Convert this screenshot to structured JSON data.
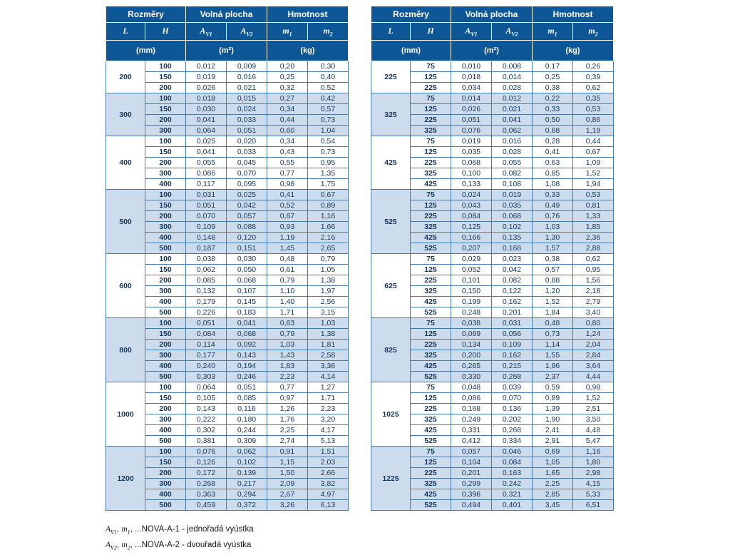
{
  "header": {
    "group_dimensions": "Rozměry",
    "group_free_area": "Volná plocha",
    "group_weight": "Hmotnost",
    "cols": [
      {
        "base": "L",
        "sub": ""
      },
      {
        "base": "H",
        "sub": ""
      },
      {
        "base": "A",
        "sub": "V1"
      },
      {
        "base": "A",
        "sub": "V2"
      },
      {
        "base": "m",
        "sub": "1"
      },
      {
        "base": "m",
        "sub": "2"
      }
    ],
    "units": [
      "(mm)",
      "(m²)",
      "(kg)"
    ]
  },
  "colors": {
    "header_bg": "#0e5796",
    "alt_row_bg": "#cddcec",
    "grid_border": "#4a7aa8",
    "data_text": "#16365c"
  },
  "tables": [
    {
      "groups": [
        {
          "L": "200",
          "rows": [
            [
              "100",
              "0,012",
              "0,009",
              "0,20",
              "0,30"
            ],
            [
              "150",
              "0,019",
              "0,016",
              "0,25",
              "0,40"
            ],
            [
              "200",
              "0,026",
              "0,021",
              "0,32",
              "0,52"
            ]
          ]
        },
        {
          "L": "300",
          "rows": [
            [
              "100",
              "0,018",
              "0,015",
              "0,27",
              "0,42"
            ],
            [
              "150",
              "0,030",
              "0,024",
              "0,34",
              "0,57"
            ],
            [
              "200",
              "0,041",
              "0,033",
              "0,44",
              "0,73"
            ],
            [
              "300",
              "0,064",
              "0,051",
              "0,60",
              "1,04"
            ]
          ]
        },
        {
          "L": "400",
          "rows": [
            [
              "100",
              "0,025",
              "0,020",
              "0,34",
              "0,54"
            ],
            [
              "150",
              "0,041",
              "0,033",
              "0,43",
              "0,73"
            ],
            [
              "200",
              "0,055",
              "0,045",
              "0,55",
              "0,95"
            ],
            [
              "300",
              "0,086",
              "0,070",
              "0,77",
              "1,35"
            ],
            [
              "400",
              "0,117",
              "0,095",
              "0,98",
              "1,75"
            ]
          ]
        },
        {
          "L": "500",
          "rows": [
            [
              "100",
              "0,031",
              "0,025",
              "0,41",
              "0,67"
            ],
            [
              "150",
              "0,051",
              "0,042",
              "0,52",
              "0,89"
            ],
            [
              "200",
              "0,070",
              "0,057",
              "0,67",
              "1,16"
            ],
            [
              "300",
              "0,109",
              "0,088",
              "0,93",
              "1,66"
            ],
            [
              "400",
              "0,148",
              "0,120",
              "1,19",
              "2,16"
            ],
            [
              "500",
              "0,187",
              "0,151",
              "1,45",
              "2,65"
            ]
          ]
        },
        {
          "L": "600",
          "rows": [
            [
              "100",
              "0,038",
              "0,030",
              "0,48",
              "0,79"
            ],
            [
              "150",
              "0,062",
              "0,050",
              "0,61",
              "1,05"
            ],
            [
              "200",
              "0,085",
              "0,068",
              "0,79",
              "1,38"
            ],
            [
              "300",
              "0,132",
              "0,107",
              "1,10",
              "1,97"
            ],
            [
              "400",
              "0,179",
              "0,145",
              "1,40",
              "2,56"
            ],
            [
              "500",
              "0,226",
              "0,183",
              "1,71",
              "3,15"
            ]
          ]
        },
        {
          "L": "800",
          "rows": [
            [
              "100",
              "0,051",
              "0,041",
              "0,63",
              "1,03"
            ],
            [
              "150",
              "0,084",
              "0,068",
              "0,79",
              "1,38"
            ],
            [
              "200",
              "0,114",
              "0,092",
              "1,03",
              "1,81"
            ],
            [
              "300",
              "0,177",
              "0,143",
              "1,43",
              "2,58"
            ],
            [
              "400",
              "0,240",
              "0,194",
              "1,83",
              "3,36"
            ],
            [
              "500",
              "0,303",
              "0,246",
              "2,23",
              "4,14"
            ]
          ]
        },
        {
          "L": "1000",
          "rows": [
            [
              "100",
              "0,064",
              "0,051",
              "0,77",
              "1,27"
            ],
            [
              "150",
              "0,105",
              "0,085",
              "0,97",
              "1,71"
            ],
            [
              "200",
              "0,143",
              "0,116",
              "1,26",
              "2,23"
            ],
            [
              "300",
              "0,222",
              "0,180",
              "1,76",
              "3,20"
            ],
            [
              "400",
              "0,302",
              "0,244",
              "2,25",
              "4,17"
            ],
            [
              "500",
              "0,381",
              "0,309",
              "2,74",
              "5,13"
            ]
          ]
        },
        {
          "L": "1200",
          "rows": [
            [
              "100",
              "0,076",
              "0,062",
              "0,91",
              "1,51"
            ],
            [
              "150",
              "0,126",
              "0,102",
              "1,15",
              "2,03"
            ],
            [
              "200",
              "0,172",
              "0,139",
              "1,50",
              "2,66"
            ],
            [
              "300",
              "0,268",
              "0,217",
              "2,09",
              "3,82"
            ],
            [
              "400",
              "0,363",
              "0,294",
              "2,67",
              "4,97"
            ],
            [
              "500",
              "0,459",
              "0,372",
              "3,26",
              "6,13"
            ]
          ]
        }
      ]
    },
    {
      "groups": [
        {
          "L": "225",
          "rows": [
            [
              "75",
              "0,010",
              "0,008",
              "0,17",
              "0,26"
            ],
            [
              "125",
              "0,018",
              "0,014",
              "0,25",
              "0,39"
            ],
            [
              "225",
              "0,034",
              "0,028",
              "0,38",
              "0,62"
            ]
          ]
        },
        {
          "L": "325",
          "rows": [
            [
              "75",
              "0,014",
              "0,012",
              "0,22",
              "0,35"
            ],
            [
              "125",
              "0,026",
              "0,021",
              "0,33",
              "0,53"
            ],
            [
              "225",
              "0,051",
              "0,041",
              "0,50",
              "0,86"
            ],
            [
              "325",
              "0,076",
              "0,062",
              "0,68",
              "1,19"
            ]
          ]
        },
        {
          "L": "425",
          "rows": [
            [
              "75",
              "0,019",
              "0,016",
              "0,28",
              "0,44"
            ],
            [
              "125",
              "0,035",
              "0,028",
              "0,41",
              "0,67"
            ],
            [
              "225",
              "0,068",
              "0,055",
              "0,63",
              "1,09"
            ],
            [
              "325",
              "0,100",
              "0,082",
              "0,85",
              "1,52"
            ],
            [
              "425",
              "0,133",
              "0,108",
              "1,08",
              "1,94"
            ]
          ]
        },
        {
          "L": "525",
          "rows": [
            [
              "75",
              "0,024",
              "0,019",
              "0,33",
              "0,53"
            ],
            [
              "125",
              "0,043",
              "0,035",
              "0,49",
              "0,81"
            ],
            [
              "225",
              "0,084",
              "0,068",
              "0,76",
              "1,33"
            ],
            [
              "325",
              "0,125",
              "0,102",
              "1,03",
              "1,85"
            ],
            [
              "425",
              "0,166",
              "0,135",
              "1,30",
              "2,36"
            ],
            [
              "525",
              "0,207",
              "0,168",
              "1,57",
              "2,88"
            ]
          ]
        },
        {
          "L": "625",
          "rows": [
            [
              "75",
              "0,029",
              "0,023",
              "0,38",
              "0,62"
            ],
            [
              "125",
              "0,052",
              "0,042",
              "0,57",
              "0,95"
            ],
            [
              "225",
              "0,101",
              "0,082",
              "0,88",
              "1,56"
            ],
            [
              "325",
              "0,150",
              "0,122",
              "1,20",
              "2,18"
            ],
            [
              "425",
              "0,199",
              "0,162",
              "1,52",
              "2,79"
            ],
            [
              "525",
              "0,248",
              "0,201",
              "1,84",
              "3,40"
            ]
          ]
        },
        {
          "L": "825",
          "rows": [
            [
              "75",
              "0,038",
              "0,031",
              "0,48",
              "0,80"
            ],
            [
              "125",
              "0,069",
              "0,056",
              "0,73",
              "1,24"
            ],
            [
              "225",
              "0,134",
              "0,109",
              "1,14",
              "2,04"
            ],
            [
              "325",
              "0,200",
              "0,162",
              "1,55",
              "2,84"
            ],
            [
              "425",
              "0,265",
              "0,215",
              "1,96",
              "3,64"
            ],
            [
              "525",
              "0,330",
              "0,268",
              "2,37",
              "4,44"
            ]
          ]
        },
        {
          "L": "1025",
          "rows": [
            [
              "75",
              "0,048",
              "0,039",
              "0,59",
              "0,98"
            ],
            [
              "125",
              "0,086",
              "0,070",
              "0,89",
              "1,52"
            ],
            [
              "225",
              "0,168",
              "0,136",
              "1,39",
              "2,51"
            ],
            [
              "325",
              "0,249",
              "0,202",
              "1,90",
              "3,50"
            ],
            [
              "425",
              "0,331",
              "0,268",
              "2,41",
              "4,48"
            ],
            [
              "525",
              "0,412",
              "0,334",
              "2,91",
              "5,47"
            ]
          ]
        },
        {
          "L": "1225",
          "rows": [
            [
              "75",
              "0,057",
              "0,046",
              "0,69",
              "1,16"
            ],
            [
              "125",
              "0,104",
              "0,084",
              "1,05",
              "1,80"
            ],
            [
              "225",
              "0,201",
              "0,163",
              "1,65",
              "2,98"
            ],
            [
              "325",
              "0,299",
              "0,242",
              "2,25",
              "4,15"
            ],
            [
              "425",
              "0,396",
              "0,321",
              "2,85",
              "5,33"
            ],
            [
              "525",
              "0,494",
              "0,401",
              "3,45",
              "6,51"
            ]
          ]
        }
      ]
    }
  ],
  "footnotes": [
    {
      "segments": [
        {
          "t": "A",
          "style": "i"
        },
        {
          "t": "V1",
          "style": "sub"
        },
        {
          "t": ", ",
          "style": ""
        },
        {
          "t": "m",
          "style": "i"
        },
        {
          "t": "1",
          "style": "sub"
        },
        {
          "t": ", ...NOVA-A-1 - jednořadá vyústka",
          "style": ""
        }
      ]
    },
    {
      "segments": [
        {
          "t": "A",
          "style": "i"
        },
        {
          "t": "V2",
          "style": "sub"
        },
        {
          "t": ", ",
          "style": ""
        },
        {
          "t": "m",
          "style": "i"
        },
        {
          "t": "2",
          "style": "sub"
        },
        {
          "t": ", ...NOVA-A-2 - dvouřadá vyústka",
          "style": ""
        }
      ]
    }
  ]
}
